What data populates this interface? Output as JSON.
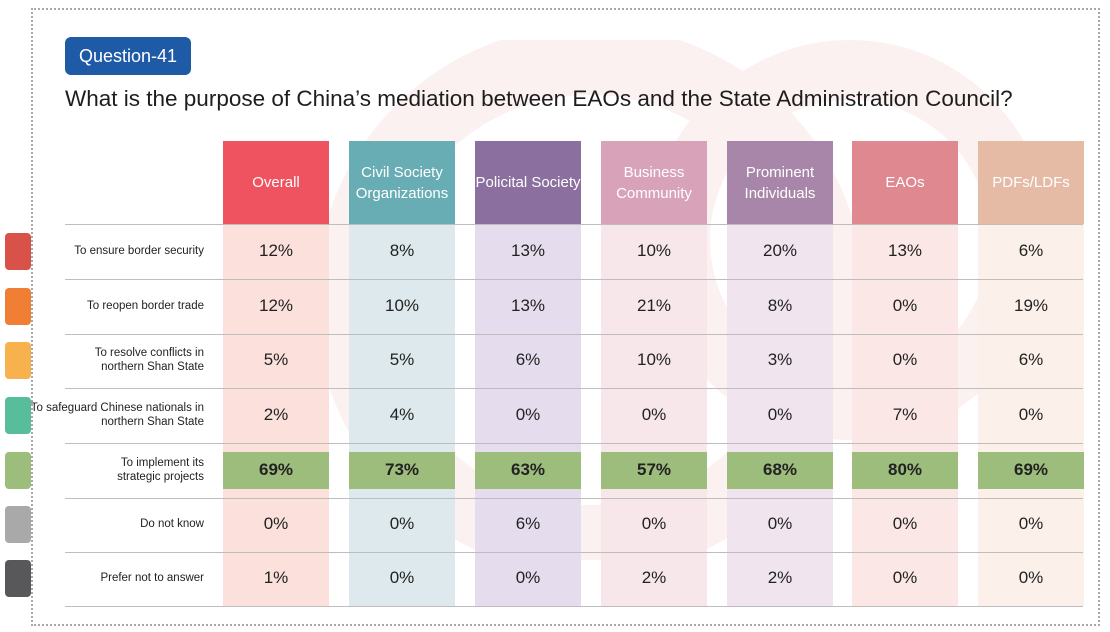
{
  "question_label": "Question-41",
  "question_text": "What is the purpose of China’s mediation between EAOs and the State Administration Council?",
  "colors": {
    "badge": "#1f5aa6",
    "highlight_row": "#9dbd7c",
    "columns": [
      "#ef5360",
      "#68adb4",
      "#8b6f9e",
      "#d8a3b8",
      "#a886a9",
      "#e08890",
      "#e5bba6"
    ],
    "columns_light": [
      "#fbe0dc",
      "#dde9ec",
      "#e5dded",
      "#f7e6ea",
      "#f0e5ef",
      "#fbe8e6",
      "#fbf0ea"
    ],
    "legend": [
      "#d9524a",
      "#f07f35",
      "#f7b24e",
      "#58bd9a",
      "#9dbd7c",
      "#a9a9a9",
      "#58585a"
    ]
  },
  "chart_data": {
    "type": "table",
    "title": "What is the purpose of China’s mediation between EAOs and the State Administration Council?",
    "columns": [
      "Overall",
      "Civil Society Organizations",
      "Policital Society",
      "Business Community",
      "Prominent Individuals",
      "EAOs",
      "PDFs/LDFs"
    ],
    "rows": [
      {
        "label": "To ensure border security",
        "values": [
          "12%",
          "8%",
          "13%",
          "10%",
          "20%",
          "13%",
          "6%"
        ]
      },
      {
        "label": "To reopen border trade",
        "values": [
          "12%",
          "10%",
          "13%",
          "21%",
          "8%",
          "0%",
          "19%"
        ]
      },
      {
        "label": "To resolve conflicts in northern Shan State",
        "values": [
          "5%",
          "5%",
          "6%",
          "10%",
          "3%",
          "0%",
          "6%"
        ]
      },
      {
        "label": "To safeguard Chinese nationals in northern Shan State",
        "values": [
          "2%",
          "4%",
          "0%",
          "0%",
          "0%",
          "7%",
          "0%"
        ]
      },
      {
        "label": "To implement its strategic projects",
        "values": [
          "69%",
          "73%",
          "63%",
          "57%",
          "68%",
          "80%",
          "69%"
        ],
        "highlight": true
      },
      {
        "label": "Do not know",
        "values": [
          "0%",
          "0%",
          "6%",
          "0%",
          "0%",
          "0%",
          "0%"
        ]
      },
      {
        "label": "Prefer not to answer",
        "values": [
          "1%",
          "0%",
          "0%",
          "2%",
          "2%",
          "0%",
          "0%"
        ]
      }
    ]
  }
}
